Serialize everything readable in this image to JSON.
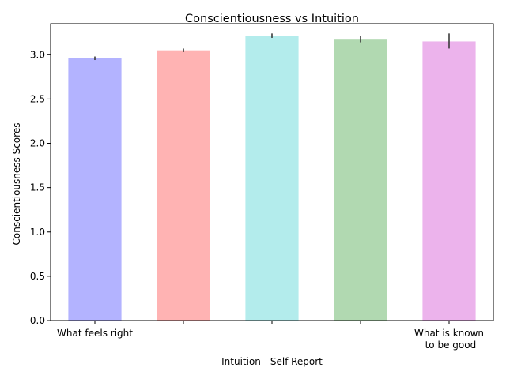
{
  "chart_data": {
    "type": "bar",
    "title": "Conscientiousness vs Intuition",
    "xlabel": "Intuition - Self-Report",
    "ylabel": "Conscientiousness Scores",
    "ylim": [
      0,
      3.35
    ],
    "yticks": [
      "0.0",
      "0.5",
      "1.0",
      "1.5",
      "2.0",
      "2.5",
      "3.0"
    ],
    "yticks_values": [
      0,
      0.5,
      1.0,
      1.5,
      2.0,
      2.5,
      3.0
    ],
    "categories": [
      "What feels right",
      "",
      "",
      "",
      "What is known\n to be good"
    ],
    "values": [
      2.96,
      3.05,
      3.21,
      3.17,
      3.15
    ],
    "error_low": [
      2.94,
      3.03,
      3.19,
      3.14,
      3.07
    ],
    "error_high": [
      2.98,
      3.07,
      3.24,
      3.21,
      3.24
    ],
    "colors": [
      "#b3b3ff",
      "#ffb3b3",
      "#b3ecec",
      "#b1d9b1",
      "#ecb3ec"
    ],
    "grid": false,
    "legend": "none"
  }
}
